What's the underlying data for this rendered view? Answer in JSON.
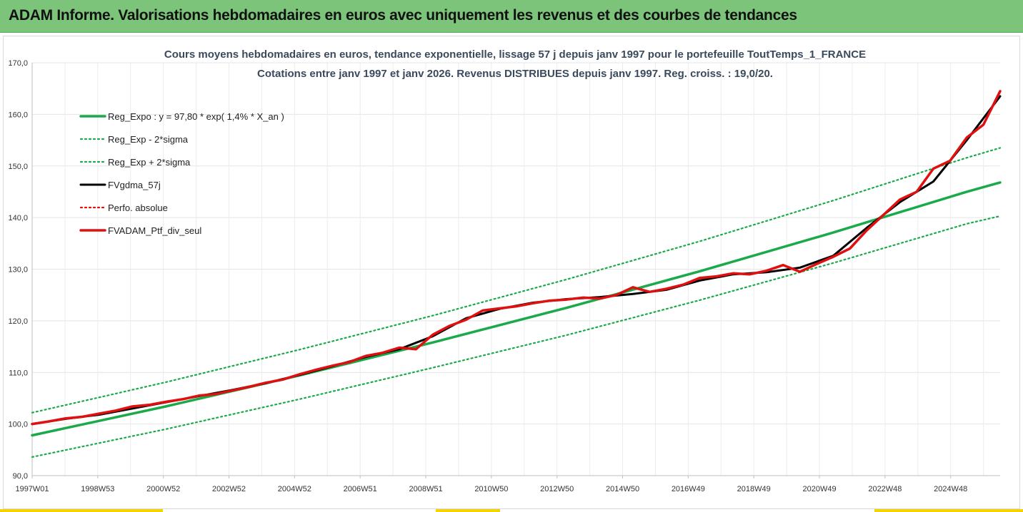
{
  "header": {
    "title": "ADAM Informe. Valorisations hebdomadaires en euros avec uniquement les revenus et des courbes de tendances"
  },
  "chart_data": {
    "type": "line",
    "title": "Cours moyens hebdomadaires  en euros, tendance exponentielle, lissage 57 j depuis janv 1997 pour le portefeuille ToutTemps_1_FRANCE",
    "subtitle": "Cotations entre janv 1997 et janv 2026. Revenus DISTRIBUES depuis janv 1997. Reg. croiss. : 19,0/20.",
    "x_start_year": 1997,
    "x_end_year": 2026,
    "x_tick_labels": [
      "1997W01",
      "1998W53",
      "2000W52",
      "2002W52",
      "2004W52",
      "2006W51",
      "2008W51",
      "2010W50",
      "2012W50",
      "2014W50",
      "2016W49",
      "2018W49",
      "2020W49",
      "2022W48",
      "2024W48"
    ],
    "y_tick_labels": [
      "90,0",
      "100,0",
      "110,0",
      "120,0",
      "130,0",
      "140,0",
      "150,0",
      "160,0",
      "170,0"
    ],
    "ylim": [
      90,
      170
    ],
    "grid": true,
    "legend_position": "top-left",
    "colors": {
      "trend": "#1aaa4a",
      "band": "#1aaa4a",
      "smooth": "#000000",
      "perfo": "#e01010",
      "portfolio": "#e01010"
    },
    "series": [
      {
        "name": "Reg_Expo : y = 97,80 * exp( 1,4% *  X_an )",
        "style": "solid-green",
        "x": [
          1997.0,
          2001.0,
          2005.0,
          2009.0,
          2013.0,
          2017.0,
          2021.0,
          2025.0,
          2026.0
        ],
        "values": [
          97.8,
          103.4,
          109.4,
          115.8,
          122.5,
          129.6,
          137.1,
          145.0,
          146.8
        ]
      },
      {
        "name": "Reg_Exp - 2*sigma",
        "style": "dotted-green",
        "x": [
          1997.0,
          2001.0,
          2005.0,
          2009.0,
          2013.0,
          2017.0,
          2021.0,
          2025.0,
          2026.0
        ],
        "values": [
          93.6,
          99.0,
          104.8,
          110.9,
          117.2,
          124.0,
          131.2,
          138.8,
          140.3
        ]
      },
      {
        "name": "Reg_Exp + 2*sigma",
        "style": "dotted-green",
        "x": [
          1997.0,
          2001.0,
          2005.0,
          2009.0,
          2013.0,
          2017.0,
          2021.0,
          2025.0,
          2026.0
        ],
        "values": [
          102.2,
          108.1,
          114.4,
          121.0,
          128.0,
          135.4,
          143.3,
          151.6,
          153.5
        ]
      },
      {
        "name": "FVgdma_57j",
        "style": "solid-black",
        "x": [
          1997.0,
          1998.0,
          1999.0,
          2000.0,
          2001.0,
          2002.0,
          2003.0,
          2004.0,
          2005.0,
          2006.0,
          2007.0,
          2008.0,
          2009.0,
          2010.0,
          2011.0,
          2012.0,
          2013.0,
          2014.0,
          2015.0,
          2016.0,
          2017.0,
          2018.0,
          2019.0,
          2020.0,
          2021.0,
          2022.0,
          2023.0,
          2024.0,
          2025.0,
          2026.0
        ],
        "values": [
          100.0,
          101.0,
          101.8,
          103.0,
          104.2,
          105.4,
          106.6,
          107.9,
          109.5,
          111.2,
          113.0,
          114.5,
          117.0,
          120.5,
          122.3,
          123.5,
          124.2,
          124.6,
          125.2,
          126.0,
          127.8,
          129.0,
          129.4,
          130.3,
          132.6,
          138.0,
          143.0,
          147.0,
          155.0,
          163.5
        ]
      },
      {
        "name": "Perfo. absolue",
        "style": "dotted-red",
        "x": [],
        "values": []
      },
      {
        "name": "FVADAM_Ptf_div_seul",
        "style": "solid-red",
        "x": [
          1997.0,
          1997.5,
          1998.0,
          1998.5,
          1999.0,
          1999.5,
          2000.0,
          2000.5,
          2001.0,
          2001.5,
          2002.0,
          2002.5,
          2003.0,
          2003.5,
          2004.0,
          2004.5,
          2005.0,
          2005.5,
          2006.0,
          2006.5,
          2007.0,
          2007.5,
          2008.0,
          2008.5,
          2009.0,
          2009.5,
          2010.0,
          2010.5,
          2011.0,
          2011.5,
          2012.0,
          2012.5,
          2013.0,
          2013.5,
          2014.0,
          2014.5,
          2015.0,
          2015.5,
          2016.0,
          2016.5,
          2017.0,
          2017.5,
          2018.0,
          2018.5,
          2019.0,
          2019.5,
          2020.0,
          2020.5,
          2021.0,
          2021.5,
          2022.0,
          2022.5,
          2023.0,
          2023.5,
          2024.0,
          2024.5,
          2025.0,
          2025.5,
          2026.0
        ],
        "values": [
          100.0,
          100.5,
          101.1,
          101.4,
          102.0,
          102.6,
          103.4,
          103.7,
          104.3,
          104.8,
          105.5,
          105.8,
          106.5,
          107.2,
          108.0,
          108.6,
          109.6,
          110.5,
          111.3,
          112.0,
          113.2,
          113.8,
          114.8,
          114.5,
          117.3,
          119.0,
          120.2,
          122.0,
          122.4,
          122.8,
          123.4,
          123.9,
          124.1,
          124.5,
          124.3,
          125.0,
          126.5,
          125.6,
          126.2,
          127.0,
          128.3,
          128.6,
          129.2,
          129.0,
          129.7,
          130.8,
          129.5,
          131.0,
          132.4,
          134.0,
          137.5,
          140.5,
          143.5,
          145.0,
          149.5,
          151.0,
          155.5,
          158.0,
          164.5
        ]
      }
    ]
  }
}
